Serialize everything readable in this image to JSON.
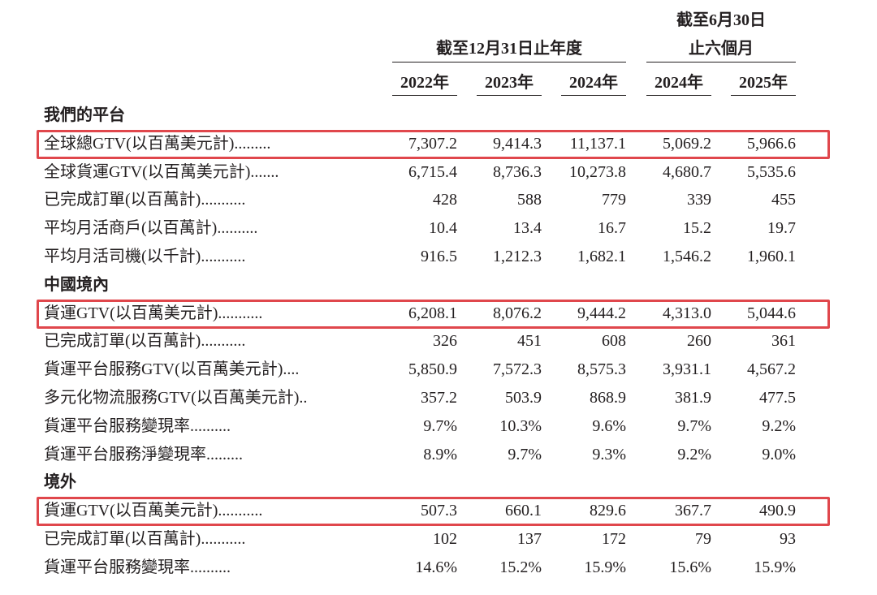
{
  "header": {
    "period_top": "截至6月30日",
    "group_year": "截至12月31日止年度",
    "group_half": "止六個月",
    "columns": [
      "2022年",
      "2023年",
      "2024年",
      "2024年",
      "2025年"
    ]
  },
  "sections": [
    {
      "title": "我們的平台",
      "rows": [
        {
          "label": "全球總GTV(以百萬美元計).........",
          "values": [
            "7,307.2",
            "9,414.3",
            "11,137.1",
            "5,069.2",
            "5,966.6"
          ],
          "highlight": true
        },
        {
          "label": "全球貨運GTV(以百萬美元計).......",
          "values": [
            "6,715.4",
            "8,736.3",
            "10,273.8",
            "4,680.7",
            "5,535.6"
          ]
        },
        {
          "label": "已完成訂單(以百萬計)...........",
          "values": [
            "428",
            "588",
            "779",
            "339",
            "455"
          ]
        },
        {
          "label": "平均月活商戶(以百萬計)..........",
          "values": [
            "10.4",
            "13.4",
            "16.7",
            "15.2",
            "19.7"
          ]
        },
        {
          "label": "平均月活司機(以千計)...........",
          "values": [
            "916.5",
            "1,212.3",
            "1,682.1",
            "1,546.2",
            "1,960.1"
          ]
        }
      ]
    },
    {
      "title": "中國境內",
      "rows": [
        {
          "label": "貨運GTV(以百萬美元計)...........",
          "values": [
            "6,208.1",
            "8,076.2",
            "9,444.2",
            "4,313.0",
            "5,044.6"
          ],
          "highlight": true
        },
        {
          "label": "已完成訂單(以百萬計)...........",
          "values": [
            "326",
            "451",
            "608",
            "260",
            "361"
          ]
        },
        {
          "label": "貨運平台服務GTV(以百萬美元計)....",
          "values": [
            "5,850.9",
            "7,572.3",
            "8,575.3",
            "3,931.1",
            "4,567.2"
          ]
        },
        {
          "label": "多元化物流服務GTV(以百萬美元計)..",
          "values": [
            "357.2",
            "503.9",
            "868.9",
            "381.9",
            "477.5"
          ]
        },
        {
          "label": "貨運平台服務變現率..........",
          "values": [
            "9.7%",
            "10.3%",
            "9.6%",
            "9.7%",
            "9.2%"
          ]
        },
        {
          "label": "貨運平台服務淨變現率.........",
          "values": [
            "8.9%",
            "9.7%",
            "9.3%",
            "9.2%",
            "9.0%"
          ]
        }
      ]
    },
    {
      "title": "境外",
      "rows": [
        {
          "label": "貨運GTV(以百萬美元計)...........",
          "values": [
            "507.3",
            "660.1",
            "829.6",
            "367.7",
            "490.9"
          ],
          "highlight": true
        },
        {
          "label": "已完成訂單(以百萬計)...........",
          "values": [
            "102",
            "137",
            "172",
            "79",
            "93"
          ]
        },
        {
          "label": "貨運平台服務變現率..........",
          "values": [
            "14.6%",
            "15.2%",
            "15.9%",
            "15.6%",
            "15.9%"
          ]
        }
      ]
    }
  ]
}
